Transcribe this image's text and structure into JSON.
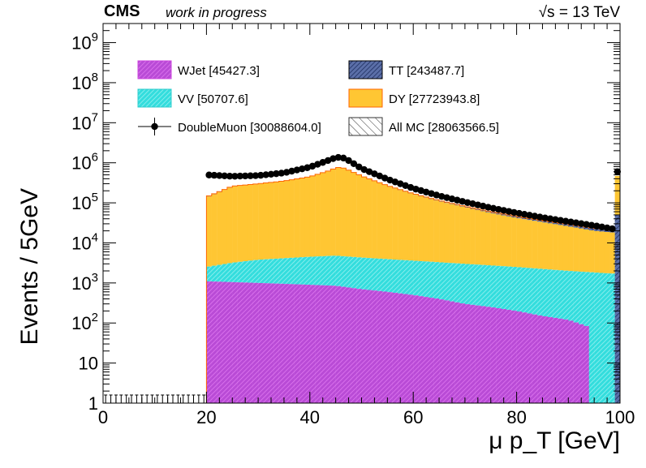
{
  "header": {
    "experiment": "CMS",
    "status": "work in progress",
    "energy_prefix": "√s",
    "energy_value": "= 13 TeV"
  },
  "colors": {
    "WJet": "#cc44dd",
    "VV": "#33dddd",
    "TT": "#1a3a8a",
    "DY": "#ffc633",
    "DY_edge": "#ff6600",
    "data": "#000000"
  },
  "chart_data": {
    "type": "bar",
    "yscale": "log",
    "xlim": [
      0,
      100
    ],
    "ylim": [
      1,
      3000000000
    ],
    "xlabel": "μ p_T [GeV]",
    "ylabel": "Events / 5GeV",
    "bin_width": 1,
    "x_ticks": [
      0,
      20,
      40,
      60,
      80,
      100
    ],
    "y_ticks": [
      {
        "value": 1,
        "base": "1",
        "exp": ""
      },
      {
        "value": 10,
        "base": "10",
        "exp": ""
      },
      {
        "value": 100,
        "base": "10",
        "exp": "2"
      },
      {
        "value": 1000,
        "base": "10",
        "exp": "3"
      },
      {
        "value": 10000,
        "base": "10",
        "exp": "4"
      },
      {
        "value": 100000,
        "base": "10",
        "exp": "5"
      },
      {
        "value": 1000000,
        "base": "10",
        "exp": "6"
      },
      {
        "value": 10000000,
        "base": "10",
        "exp": "7"
      },
      {
        "value": 100000000,
        "base": "10",
        "exp": "8"
      },
      {
        "value": 1000000000,
        "base": "10",
        "exp": "9"
      }
    ],
    "legend": [
      {
        "name": "WJet",
        "label": "WJet [45427.3]",
        "style": "fill"
      },
      {
        "name": "TT",
        "label": "TT [243487.7]",
        "style": "fill"
      },
      {
        "name": "VV",
        "label": "VV [50707.6]",
        "style": "fill"
      },
      {
        "name": "DY",
        "label": "DY [27723943.8]",
        "style": "fill"
      },
      {
        "name": "DoubleMuon",
        "label": "DoubleMuon [30088604.0]",
        "style": "marker"
      },
      {
        "name": "AllMC",
        "label": "All MC [28063566.5]",
        "style": "hatch"
      }
    ],
    "series": {
      "total_mc": {
        "x": [
          20,
          25,
          30,
          35,
          40,
          44,
          45,
          46,
          47,
          50,
          55,
          60,
          65,
          70,
          75,
          80,
          85,
          90,
          95,
          99
        ],
        "y": [
          140000,
          260000,
          300000,
          350000,
          450000,
          650000,
          750000,
          780000,
          700000,
          470000,
          270000,
          170000,
          115000,
          82000,
          60000,
          46000,
          36000,
          29000,
          23000,
          21000
        ]
      },
      "dy_top": {
        "x": [
          20,
          25,
          30,
          35,
          40,
          44,
          45,
          46,
          47,
          50,
          55,
          60,
          65,
          70,
          75,
          80,
          85,
          90,
          95,
          99
        ],
        "y": [
          135000,
          255000,
          295000,
          345000,
          445000,
          645000,
          745000,
          775000,
          695000,
          465000,
          265000,
          165000,
          110000,
          78000,
          56000,
          42000,
          33000,
          26000,
          20000,
          18000
        ]
      },
      "vv_top": {
        "x": [
          20,
          25,
          30,
          40,
          45,
          50,
          60,
          70,
          80,
          90,
          99
        ],
        "y": [
          2500,
          3200,
          3800,
          4500,
          4800,
          4300,
          3600,
          3000,
          2500,
          2000,
          1700
        ]
      },
      "wjet": {
        "x": [
          20,
          25,
          30,
          35,
          40,
          45,
          50,
          55,
          60,
          65,
          70,
          75,
          80,
          85,
          90,
          94
        ],
        "y": [
          1100,
          1050,
          1000,
          950,
          900,
          850,
          700,
          600,
          500,
          400,
          300,
          250,
          200,
          150,
          120,
          80
        ]
      },
      "data": {
        "x": [
          20,
          25,
          30,
          35,
          40,
          44,
          45,
          46,
          47,
          50,
          55,
          60,
          65,
          70,
          75,
          80,
          85,
          90,
          95,
          99
        ],
        "y": [
          500000,
          460000,
          480000,
          560000,
          780000,
          1200000,
          1350000,
          1380000,
          1250000,
          720000,
          390000,
          230000,
          150000,
          105000,
          75000,
          56000,
          43000,
          34000,
          27000,
          22000
        ]
      },
      "overflow": {
        "x": 99.5,
        "data": 600000,
        "mc_top": 470000,
        "tt_top": 50000
      }
    }
  }
}
